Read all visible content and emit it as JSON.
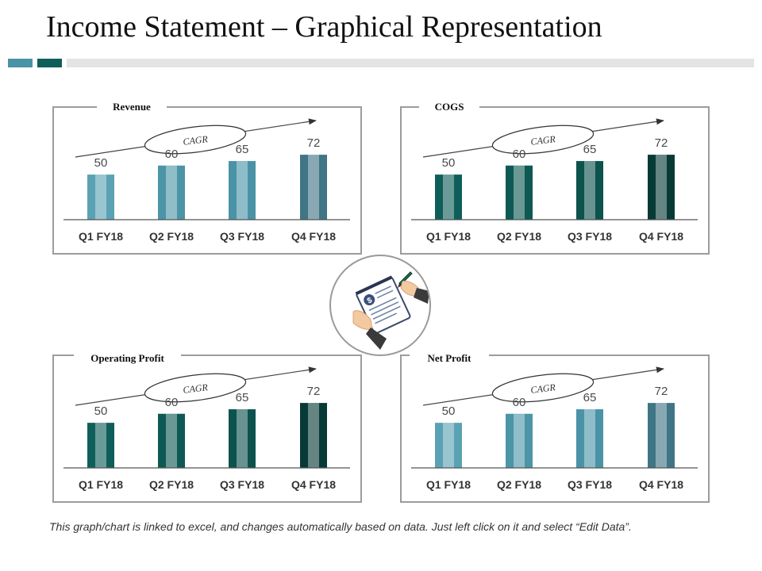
{
  "title": "Income Statement – Graphical Representation",
  "footnote": "This graph/chart is linked to excel, and changes automatically based on data. Just left click on it and select “Edit Data”.",
  "colors": {
    "accent_light": "#4a93a6",
    "accent_dark": "#0f5e5a",
    "accent_grey": "#e4e4e4",
    "teal_palette": [
      "#5aa2b3",
      "#4b95a7",
      "#4a93a6",
      "#3f7585"
    ],
    "green_palette": [
      "#0f5e5a",
      "#0e5954",
      "#0c524d",
      "#073a36"
    ]
  },
  "icons": {
    "center": "hand-writing-financial-document-icon"
  },
  "chart_data": [
    {
      "type": "bar",
      "title": "Revenue",
      "categories": [
        "Q1 FY18",
        "Q2 FY18",
        "Q3 FY18",
        "Q4 FY18"
      ],
      "values": [
        50,
        60,
        65,
        72
      ],
      "ylim": [
        0,
        80
      ],
      "grid": false,
      "annotation": "CAGR",
      "palette": "teal"
    },
    {
      "type": "bar",
      "title": "COGS",
      "categories": [
        "Q1 FY18",
        "Q2 FY18",
        "Q3 FY18",
        "Q4 FY18"
      ],
      "values": [
        50,
        60,
        65,
        72
      ],
      "ylim": [
        0,
        80
      ],
      "grid": false,
      "annotation": "CAGR",
      "palette": "green"
    },
    {
      "type": "bar",
      "title": "Operating Profit",
      "categories": [
        "Q1 FY18",
        "Q2 FY18",
        "Q3 FY18",
        "Q4 FY18"
      ],
      "values": [
        50,
        60,
        65,
        72
      ],
      "ylim": [
        0,
        80
      ],
      "grid": false,
      "annotation": "CAGR",
      "palette": "green"
    },
    {
      "type": "bar",
      "title": "Net Profit",
      "categories": [
        "Q1 FY18",
        "Q2 FY18",
        "Q3 FY18",
        "Q4 FY18"
      ],
      "values": [
        50,
        60,
        65,
        72
      ],
      "ylim": [
        0,
        80
      ],
      "grid": false,
      "annotation": "CAGR",
      "palette": "teal"
    }
  ]
}
